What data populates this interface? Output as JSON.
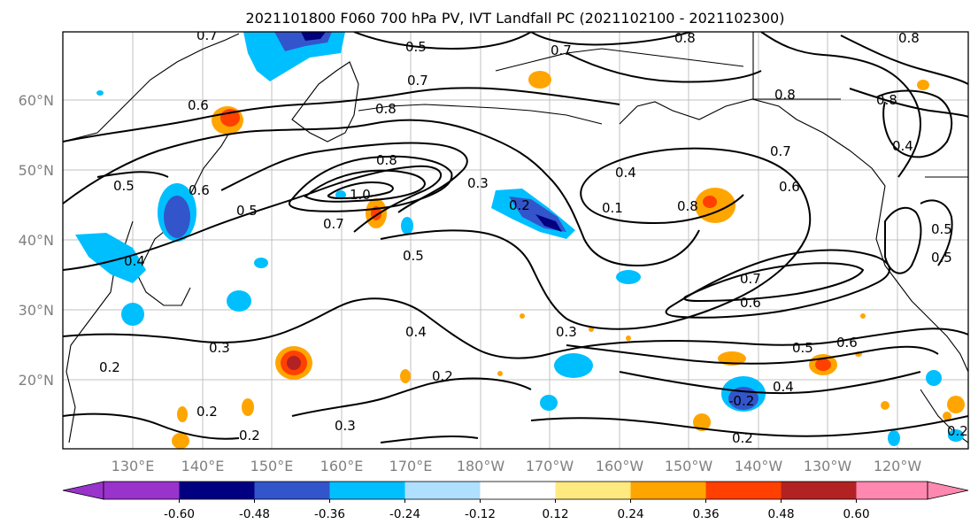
{
  "title": "2021101800 F060 700 hPa PV, IVT Landfall PC (2021102100 - 2021102300)",
  "lat_labels": [
    "60°N",
    "50°N",
    "40°N",
    "30°N",
    "20°N"
  ],
  "lon_labels": [
    "130°E",
    "140°E",
    "150°E",
    "160°E",
    "170°E",
    "180°W",
    "170°W",
    "160°W",
    "150°W",
    "140°W",
    "130°W",
    "120°W"
  ],
  "contour_labels": [
    "0.7",
    "0.5",
    "0.7",
    "0.8",
    "0.6",
    "0.7",
    "0.8",
    "0.8",
    "0.8",
    "0.8",
    "0.4",
    "0.5",
    "0.6",
    "0.5",
    "0.8",
    "0.3",
    "0.2",
    "0.4",
    "0.8",
    "0.7",
    "0.6",
    "0.1",
    "1.0",
    "0.7",
    "0.5",
    "0.4",
    "0.2",
    "0.7",
    "0.6",
    "0.3",
    "0.4",
    "0.3",
    "0.2",
    "0.5",
    "0.6",
    "0.4",
    "-0.2",
    "0.2",
    "0.3",
    "0.2",
    "0.2",
    "0.2",
    "0.5",
    "0.5"
  ],
  "colorbar": {
    "ticks": [
      "-0.60",
      "-0.48",
      "-0.36",
      "-0.24",
      "-0.12",
      "0.12",
      "0.24",
      "0.36",
      "0.48",
      "0.60"
    ],
    "colors": [
      "#9933cc",
      "#000080",
      "#3355cc",
      "#00bfff",
      "#b0e0ff",
      "#ffffff",
      "#ffea80",
      "#ffa500",
      "#ff4000",
      "#b22222",
      "#ff88b0"
    ]
  }
}
